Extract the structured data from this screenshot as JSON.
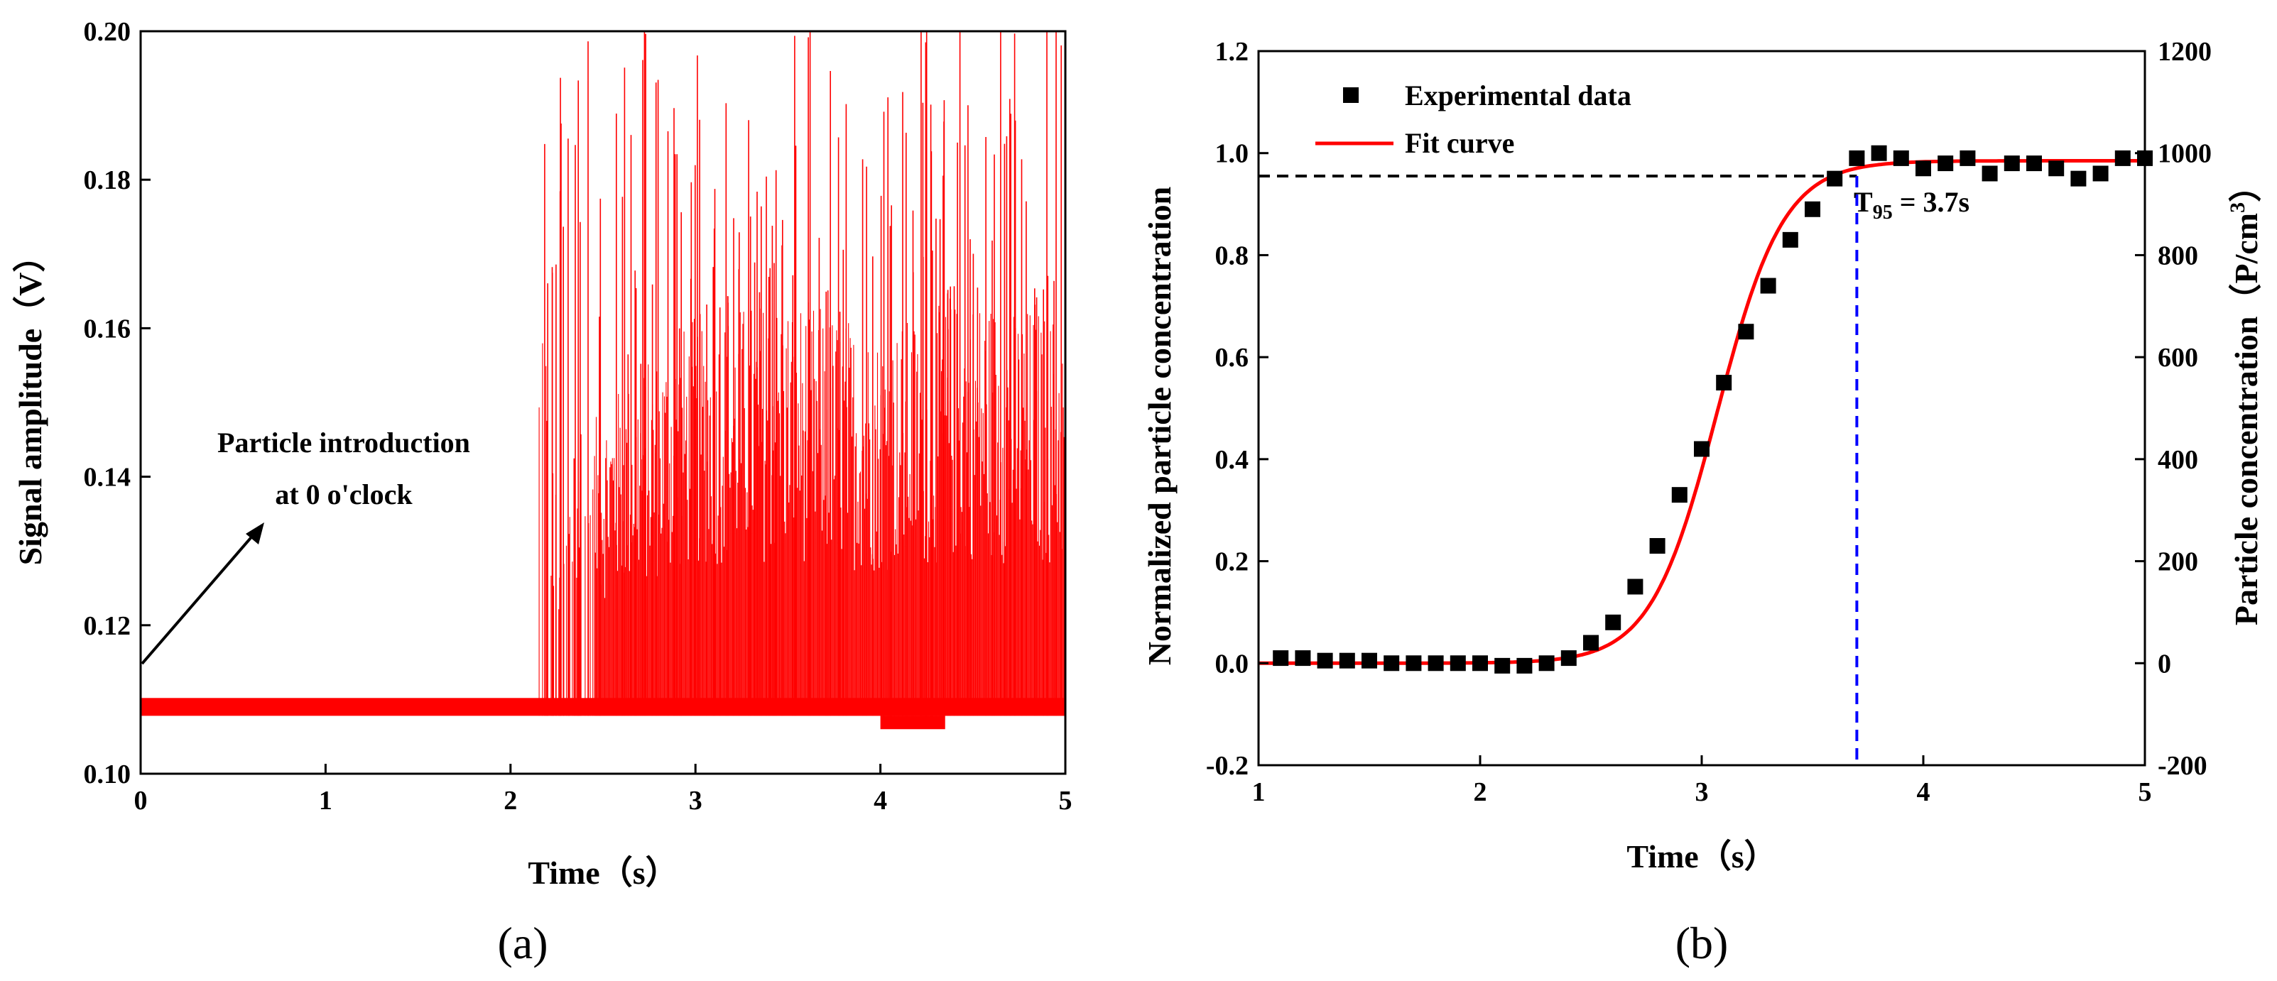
{
  "chart_data": [
    {
      "id": "a",
      "type": "line",
      "panel_label": "(a)",
      "xlabel": "Time（s）",
      "ylabel": "Signal amplitude（V）",
      "xlim": [
        0,
        5
      ],
      "ylim": [
        0.1,
        0.2
      ],
      "xticks": [
        "0",
        "1",
        "2",
        "3",
        "4",
        "5"
      ],
      "yticks": [
        "0.10",
        "0.12",
        "0.14",
        "0.16",
        "0.18",
        "0.20"
      ],
      "series_color": "#ff0000",
      "baseline_level": 0.109,
      "baseline_end_time": 2.15,
      "noisy_band_upper_level": [
        {
          "t": 2.2,
          "v": 0.135
        },
        {
          "t": 2.5,
          "v": 0.15
        },
        {
          "t": 3.0,
          "v": 0.162
        },
        {
          "t": 3.5,
          "v": 0.165
        },
        {
          "t": 4.0,
          "v": 0.16
        },
        {
          "t": 4.5,
          "v": 0.165
        },
        {
          "t": 5.0,
          "v": 0.162
        }
      ],
      "spike_max": 0.2,
      "annotation": {
        "line1": "Particle introduction",
        "line2": "at 0 o'clock",
        "points_to": {
          "t": 0,
          "v": 0.11
        }
      }
    },
    {
      "id": "b",
      "type": "scatter",
      "panel_label": "(b)",
      "xlabel": "Time（s）",
      "ylabel_left": "Normalized particle concentration",
      "ylabel_right_main": "Particle concentration（P/cm",
      "ylabel_right_sup": "3",
      "ylabel_right_end": "）",
      "xlim": [
        1,
        5
      ],
      "ylim_left": [
        -0.2,
        1.2
      ],
      "ylim_right": [
        -200,
        1200
      ],
      "xticks": [
        "1",
        "2",
        "3",
        "4",
        "5"
      ],
      "yticks_left": [
        "-0.2",
        "0.0",
        "0.2",
        "0.4",
        "0.6",
        "0.8",
        "1.0",
        "1.2"
      ],
      "yticks_right": [
        "-200",
        "0",
        "200",
        "400",
        "600",
        "800",
        "1000",
        "1200"
      ],
      "series": [
        {
          "name": "Experimental data",
          "marker": "square",
          "color": "#000000",
          "x": [
            1.1,
            1.2,
            1.3,
            1.4,
            1.5,
            1.6,
            1.7,
            1.8,
            1.9,
            2.0,
            2.1,
            2.2,
            2.3,
            2.4,
            2.5,
            2.6,
            2.7,
            2.8,
            2.9,
            3.0,
            3.1,
            3.2,
            3.3,
            3.4,
            3.5,
            3.6,
            3.7,
            3.8,
            3.9,
            4.0,
            4.1,
            4.2,
            4.3,
            4.4,
            4.5,
            4.6,
            4.7,
            4.8,
            4.9,
            5.0
          ],
          "y": [
            0.01,
            0.01,
            0.005,
            0.005,
            0.005,
            0.0,
            0.0,
            0.0,
            0.0,
            0.0,
            -0.005,
            -0.005,
            0.0,
            0.01,
            0.04,
            0.08,
            0.15,
            0.23,
            0.33,
            0.42,
            0.55,
            0.65,
            0.74,
            0.83,
            0.89,
            0.95,
            0.99,
            1.0,
            0.99,
            0.97,
            0.98,
            0.99,
            0.96,
            0.98,
            0.98,
            0.97,
            0.95,
            0.96,
            0.99,
            0.99
          ]
        },
        {
          "name": "Fit curve",
          "type": "sigmoid",
          "color": "#ff0000",
          "A1": 0.0,
          "A2": 0.985,
          "x0": 3.07,
          "dx": 0.15
        }
      ],
      "reference_lines": {
        "horizontal": {
          "y": 0.955,
          "color": "#000000",
          "style": "dashed"
        },
        "vertical": {
          "x": 3.7,
          "color": "#0000ff",
          "style": "dashed"
        }
      },
      "annotation": {
        "main": "T",
        "sub": "95",
        "rest": " = 3.7s"
      }
    }
  ]
}
